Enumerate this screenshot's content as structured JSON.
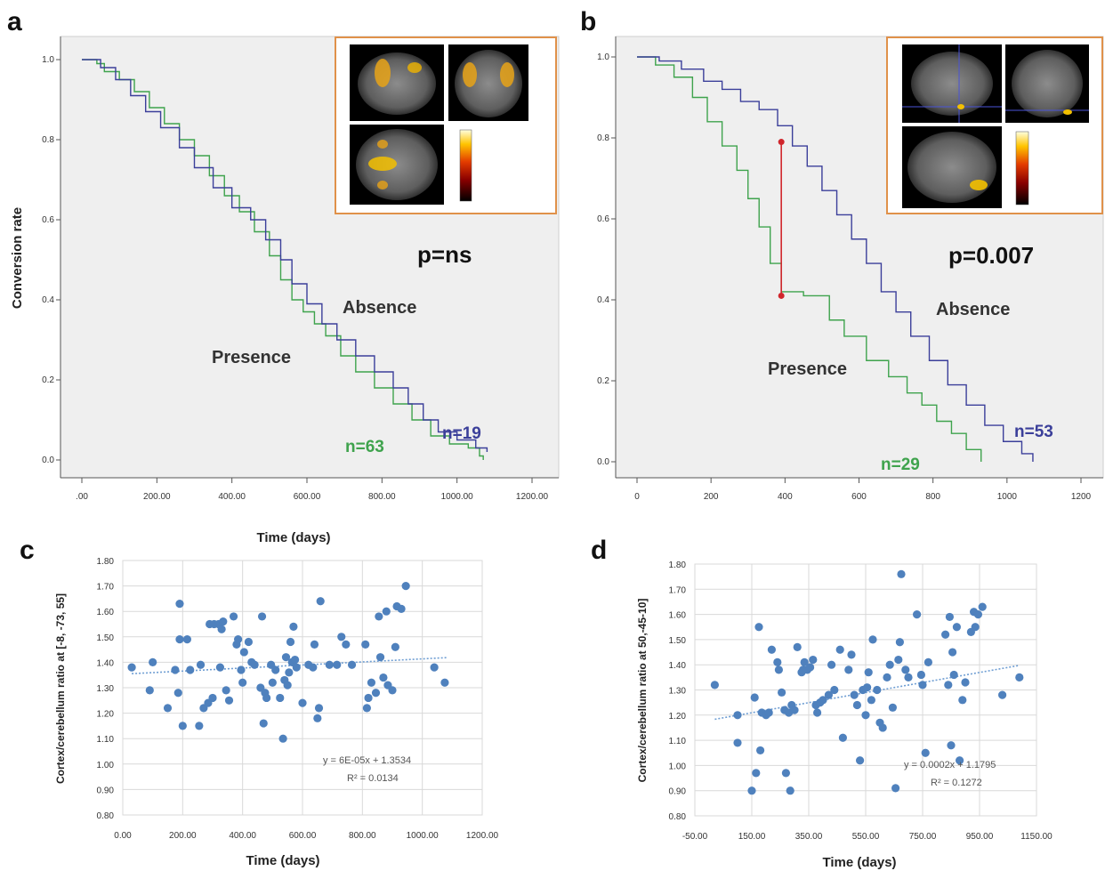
{
  "colors": {
    "presence": "#3fa34d",
    "absence": "#3b3f9a",
    "km_background": "#efefef",
    "scatter_point": "#4f81bd",
    "trend": "#6f9ed3",
    "inset_border": "#e0914a",
    "marker": "#d0262c"
  },
  "chart_data": [
    {
      "panel": "a",
      "type": "line",
      "ylabel": "Conversion rate",
      "xlabel": "Time (days)",
      "xlim": [
        -10,
        1220
      ],
      "ylim": [
        -0.02,
        1.05
      ],
      "xticks": [
        ".00",
        "200.00",
        "400.00",
        "600.00",
        "800.00",
        "1000.00",
        "1200.00"
      ],
      "xtick_values": [
        0,
        200,
        400,
        600,
        800,
        1000,
        1200
      ],
      "yticks": [
        "0.0",
        "0.2",
        "0.4",
        "0.6",
        "0.8",
        "1.0"
      ],
      "ytick_values": [
        0,
        0.2,
        0.4,
        0.6,
        0.8,
        1.0
      ],
      "annotation": "p=ns",
      "series": [
        {
          "name": "Presence",
          "color_key": "presence",
          "n_label": "n=63",
          "x": [
            0,
            40,
            60,
            100,
            140,
            180,
            220,
            260,
            300,
            340,
            380,
            420,
            460,
            500,
            530,
            560,
            590,
            620,
            650,
            690,
            730,
            780,
            830,
            880,
            930,
            980,
            1030,
            1060,
            1070
          ],
          "y": [
            1.0,
            0.99,
            0.97,
            0.95,
            0.92,
            0.88,
            0.84,
            0.8,
            0.76,
            0.71,
            0.66,
            0.62,
            0.57,
            0.51,
            0.45,
            0.4,
            0.37,
            0.34,
            0.31,
            0.26,
            0.22,
            0.18,
            0.14,
            0.1,
            0.06,
            0.04,
            0.03,
            0.01,
            0.0
          ]
        },
        {
          "name": "Absence",
          "color_key": "absence",
          "n_label": "n=19",
          "x": [
            0,
            50,
            90,
            130,
            170,
            210,
            260,
            300,
            350,
            400,
            450,
            490,
            530,
            560,
            600,
            640,
            680,
            730,
            780,
            830,
            870,
            910,
            950,
            1000,
            1050,
            1080
          ],
          "y": [
            1.0,
            0.98,
            0.95,
            0.91,
            0.87,
            0.83,
            0.78,
            0.73,
            0.68,
            0.63,
            0.6,
            0.55,
            0.5,
            0.44,
            0.39,
            0.34,
            0.3,
            0.26,
            0.22,
            0.18,
            0.14,
            0.1,
            0.07,
            0.05,
            0.03,
            0.02
          ]
        }
      ],
      "labels": {
        "presence": "Presence",
        "absence": "Absence"
      }
    },
    {
      "panel": "b",
      "type": "line",
      "xlabel": "",
      "ylabel": "",
      "xlim": [
        -20,
        1230
      ],
      "ylim": [
        -0.02,
        1.05
      ],
      "xticks": [
        "0",
        "200",
        "400",
        "600",
        "800",
        "1000",
        "1200"
      ],
      "xtick_values": [
        0,
        200,
        400,
        600,
        800,
        1000,
        1200
      ],
      "yticks": [
        "0.0",
        "0.2",
        "0.4",
        "0.6",
        "0.8",
        "1.0"
      ],
      "ytick_values": [
        0,
        0.2,
        0.4,
        0.6,
        0.8,
        1.0
      ],
      "annotation": "p=0.007",
      "marker_x": 390,
      "marker_y": [
        0.41,
        0.79
      ],
      "series": [
        {
          "name": "Presence",
          "color_key": "presence",
          "n_label": "n=29",
          "x": [
            0,
            50,
            100,
            150,
            190,
            230,
            270,
            300,
            330,
            360,
            390,
            450,
            520,
            560,
            620,
            680,
            730,
            770,
            810,
            850,
            890,
            930
          ],
          "y": [
            1.0,
            0.98,
            0.95,
            0.9,
            0.84,
            0.78,
            0.72,
            0.65,
            0.58,
            0.49,
            0.42,
            0.41,
            0.35,
            0.31,
            0.25,
            0.21,
            0.17,
            0.14,
            0.1,
            0.07,
            0.03,
            0.0
          ]
        },
        {
          "name": "Absence",
          "color_key": "absence",
          "n_label": "n=53",
          "x": [
            0,
            60,
            120,
            180,
            230,
            280,
            330,
            380,
            420,
            460,
            500,
            540,
            580,
            620,
            660,
            700,
            740,
            790,
            840,
            890,
            940,
            990,
            1040,
            1070
          ],
          "y": [
            1.0,
            0.99,
            0.97,
            0.94,
            0.92,
            0.89,
            0.87,
            0.83,
            0.78,
            0.73,
            0.67,
            0.61,
            0.55,
            0.49,
            0.42,
            0.37,
            0.31,
            0.25,
            0.19,
            0.14,
            0.09,
            0.05,
            0.02,
            0.0
          ]
        }
      ],
      "labels": {
        "presence": "Presence",
        "absence": "Absence"
      }
    },
    {
      "panel": "c",
      "type": "scatter",
      "ylabel": "Cortex/cerebellum ratio at [-8, -73, 55]",
      "xlabel": "Time (days)",
      "xlim": [
        0,
        1200
      ],
      "ylim": [
        0.8,
        1.8
      ],
      "xticks": [
        "0.00",
        "200.00",
        "400.00",
        "600.00",
        "800.00",
        "1000.00",
        "1200.00"
      ],
      "xtick_values": [
        0,
        200,
        400,
        600,
        800,
        1000,
        1200
      ],
      "yticks": [
        "0.80",
        "0.90",
        "1.00",
        "1.10",
        "1.20",
        "1.30",
        "1.40",
        "1.50",
        "1.60",
        "1.70",
        "1.80"
      ],
      "ytick_values": [
        0.8,
        0.9,
        1.0,
        1.1,
        1.2,
        1.3,
        1.4,
        1.5,
        1.6,
        1.7,
        1.8
      ],
      "trend": {
        "slope": 6e-05,
        "intercept": 1.3534,
        "x": [
          30,
          1080
        ]
      },
      "equation": "y = 6E-05x + 1.3534",
      "r2": "R² = 0.0134",
      "points": [
        [
          30,
          1.38
        ],
        [
          90,
          1.29
        ],
        [
          100,
          1.4
        ],
        [
          150,
          1.22
        ],
        [
          175,
          1.37
        ],
        [
          185,
          1.28
        ],
        [
          190,
          1.49
        ],
        [
          190,
          1.63
        ],
        [
          200,
          1.15
        ],
        [
          215,
          1.49
        ],
        [
          225,
          1.37
        ],
        [
          255,
          1.15
        ],
        [
          260,
          1.39
        ],
        [
          270,
          1.22
        ],
        [
          285,
          1.24
        ],
        [
          290,
          1.55
        ],
        [
          300,
          1.26
        ],
        [
          305,
          1.55
        ],
        [
          320,
          1.55
        ],
        [
          325,
          1.38
        ],
        [
          330,
          1.53
        ],
        [
          335,
          1.56
        ],
        [
          345,
          1.29
        ],
        [
          355,
          1.25
        ],
        [
          370,
          1.58
        ],
        [
          380,
          1.47
        ],
        [
          385,
          1.49
        ],
        [
          395,
          1.37
        ],
        [
          400,
          1.32
        ],
        [
          405,
          1.44
        ],
        [
          420,
          1.48
        ],
        [
          430,
          1.4
        ],
        [
          440,
          1.39
        ],
        [
          460,
          1.3
        ],
        [
          465,
          1.58
        ],
        [
          470,
          1.16
        ],
        [
          475,
          1.28
        ],
        [
          480,
          1.26
        ],
        [
          495,
          1.39
        ],
        [
          500,
          1.32
        ],
        [
          510,
          1.37
        ],
        [
          525,
          1.26
        ],
        [
          535,
          1.1
        ],
        [
          540,
          1.33
        ],
        [
          545,
          1.42
        ],
        [
          550,
          1.31
        ],
        [
          555,
          1.36
        ],
        [
          560,
          1.48
        ],
        [
          565,
          1.4
        ],
        [
          570,
          1.54
        ],
        [
          575,
          1.41
        ],
        [
          580,
          1.38
        ],
        [
          600,
          1.24
        ],
        [
          620,
          1.39
        ],
        [
          635,
          1.38
        ],
        [
          640,
          1.47
        ],
        [
          650,
          1.18
        ],
        [
          655,
          1.22
        ],
        [
          660,
          1.64
        ],
        [
          690,
          1.39
        ],
        [
          715,
          1.39
        ],
        [
          730,
          1.5
        ],
        [
          745,
          1.47
        ],
        [
          765,
          1.39
        ],
        [
          810,
          1.47
        ],
        [
          815,
          1.22
        ],
        [
          820,
          1.26
        ],
        [
          830,
          1.32
        ],
        [
          845,
          1.28
        ],
        [
          855,
          1.58
        ],
        [
          860,
          1.42
        ],
        [
          870,
          1.34
        ],
        [
          880,
          1.6
        ],
        [
          885,
          1.31
        ],
        [
          900,
          1.29
        ],
        [
          910,
          1.46
        ],
        [
          915,
          1.62
        ],
        [
          930,
          1.61
        ],
        [
          945,
          1.7
        ],
        [
          1040,
          1.38
        ],
        [
          1075,
          1.32
        ]
      ]
    },
    {
      "panel": "d",
      "type": "scatter",
      "ylabel": "Cortex/cerebellum ratio at 50,-45-10]",
      "xlabel": "Time (days)",
      "xlim": [
        -50,
        1150
      ],
      "ylim": [
        0.8,
        1.8
      ],
      "xticks": [
        "-50.00",
        "150.00",
        "350.00",
        "550.00",
        "750.00",
        "950.00",
        "1150.00"
      ],
      "xtick_values": [
        -50,
        150,
        350,
        550,
        750,
        950,
        1150
      ],
      "yticks": [
        "0.80",
        "0.90",
        "1.00",
        "1.10",
        "1.20",
        "1.30",
        "1.40",
        "1.50",
        "1.60",
        "1.70",
        "1.80"
      ],
      "ytick_values": [
        0.8,
        0.9,
        1.0,
        1.1,
        1.2,
        1.3,
        1.4,
        1.5,
        1.6,
        1.7,
        1.8
      ],
      "trend": {
        "slope": 0.0002,
        "intercept": 1.1795,
        "x": [
          20,
          1090
        ]
      },
      "equation": "y = 0.0002x + 1.1795",
      "r2": "R² = 0.1272",
      "points": [
        [
          20,
          1.32
        ],
        [
          100,
          1.2
        ],
        [
          100,
          1.09
        ],
        [
          150,
          0.9
        ],
        [
          160,
          1.27
        ],
        [
          165,
          0.97
        ],
        [
          175,
          1.55
        ],
        [
          180,
          1.06
        ],
        [
          185,
          1.21
        ],
        [
          200,
          1.2
        ],
        [
          210,
          1.21
        ],
        [
          220,
          1.46
        ],
        [
          240,
          1.41
        ],
        [
          245,
          1.38
        ],
        [
          255,
          1.29
        ],
        [
          265,
          1.22
        ],
        [
          270,
          0.97
        ],
        [
          280,
          1.21
        ],
        [
          285,
          0.9
        ],
        [
          290,
          1.24
        ],
        [
          300,
          1.22
        ],
        [
          310,
          1.47
        ],
        [
          325,
          1.37
        ],
        [
          330,
          1.38
        ],
        [
          335,
          1.41
        ],
        [
          345,
          1.38
        ],
        [
          355,
          1.39
        ],
        [
          365,
          1.42
        ],
        [
          375,
          1.24
        ],
        [
          380,
          1.21
        ],
        [
          390,
          1.25
        ],
        [
          400,
          1.26
        ],
        [
          420,
          1.28
        ],
        [
          430,
          1.4
        ],
        [
          440,
          1.3
        ],
        [
          460,
          1.46
        ],
        [
          470,
          1.11
        ],
        [
          490,
          1.38
        ],
        [
          500,
          1.44
        ],
        [
          510,
          1.28
        ],
        [
          520,
          1.24
        ],
        [
          530,
          1.02
        ],
        [
          540,
          1.3
        ],
        [
          550,
          1.2
        ],
        [
          555,
          1.31
        ],
        [
          560,
          1.37
        ],
        [
          570,
          1.26
        ],
        [
          575,
          1.5
        ],
        [
          590,
          1.3
        ],
        [
          600,
          1.17
        ],
        [
          610,
          1.15
        ],
        [
          625,
          1.35
        ],
        [
          635,
          1.4
        ],
        [
          645,
          1.23
        ],
        [
          655,
          0.91
        ],
        [
          665,
          1.42
        ],
        [
          670,
          1.49
        ],
        [
          675,
          1.76
        ],
        [
          690,
          1.38
        ],
        [
          700,
          1.35
        ],
        [
          730,
          1.6
        ],
        [
          745,
          1.36
        ],
        [
          750,
          1.32
        ],
        [
          760,
          1.05
        ],
        [
          770,
          1.41
        ],
        [
          830,
          1.52
        ],
        [
          840,
          1.32
        ],
        [
          845,
          1.59
        ],
        [
          850,
          1.08
        ],
        [
          855,
          1.45
        ],
        [
          860,
          1.36
        ],
        [
          870,
          1.55
        ],
        [
          880,
          1.02
        ],
        [
          890,
          1.26
        ],
        [
          900,
          1.33
        ],
        [
          920,
          1.53
        ],
        [
          930,
          1.61
        ],
        [
          935,
          1.55
        ],
        [
          945,
          1.6
        ],
        [
          960,
          1.63
        ],
        [
          1030,
          1.28
        ],
        [
          1090,
          1.35
        ]
      ]
    }
  ],
  "panel_a": {
    "letter": "a",
    "title_x": "Time (days)",
    "title_y": "Conversion rate",
    "pval": "p=ns",
    "presence": "Presence",
    "absence": "Absence",
    "n_presence": "n=63",
    "n_absence": "n=19"
  },
  "panel_b": {
    "letter": "b",
    "pval": "p=0.007",
    "presence": "Presence",
    "absence": "Absence",
    "n_presence": "n=29",
    "n_absence": "n=53"
  },
  "panel_c": {
    "letter": "c",
    "title_x": "Time (days)",
    "title_y": "Cortex/cerebellum ratio at [-8, -73, 55]",
    "eq": "y = 6E-05x + 1.3534",
    "r2": "R² = 0.0134"
  },
  "panel_d": {
    "letter": "d",
    "title_x": "Time (days)",
    "title_y": "Cortex/cerebellum ratio at 50,-45-10]",
    "eq": "y = 0.0002x + 1.1795",
    "r2": "R² = 0.1272"
  }
}
